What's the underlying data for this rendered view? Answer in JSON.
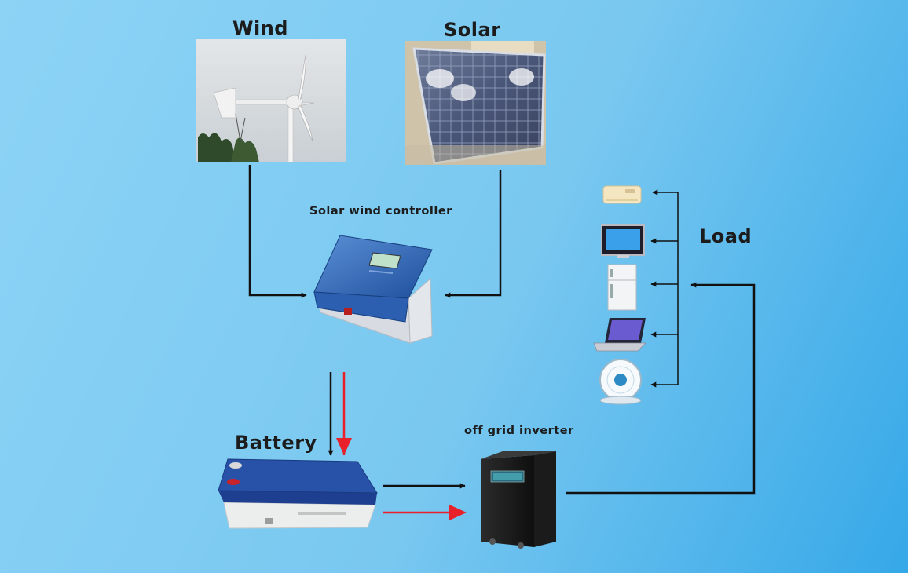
{
  "diagram": {
    "nodes": {
      "wind": {
        "label": "Wind"
      },
      "solar": {
        "label": "Solar"
      },
      "controller": {
        "label": "Solar wind controller"
      },
      "battery": {
        "label": "Battery"
      },
      "inverter": {
        "label": "off grid inverter"
      },
      "load": {
        "label": "Load"
      }
    },
    "load_devices": [
      "air-conditioner-icon",
      "television-icon",
      "refrigerator-icon",
      "laptop-icon",
      "fan-icon"
    ],
    "edges": [
      {
        "from": "wind",
        "to": "controller",
        "color": "#111111"
      },
      {
        "from": "solar",
        "to": "controller",
        "color": "#111111"
      },
      {
        "from": "controller",
        "to": "battery",
        "color": "#111111"
      },
      {
        "from": "controller",
        "to": "battery",
        "color": "#e8202a"
      },
      {
        "from": "battery",
        "to": "inverter",
        "color": "#111111"
      },
      {
        "from": "battery",
        "to": "inverter",
        "color": "#e8202a"
      },
      {
        "from": "inverter",
        "to": "load",
        "color": "#111111"
      }
    ]
  }
}
